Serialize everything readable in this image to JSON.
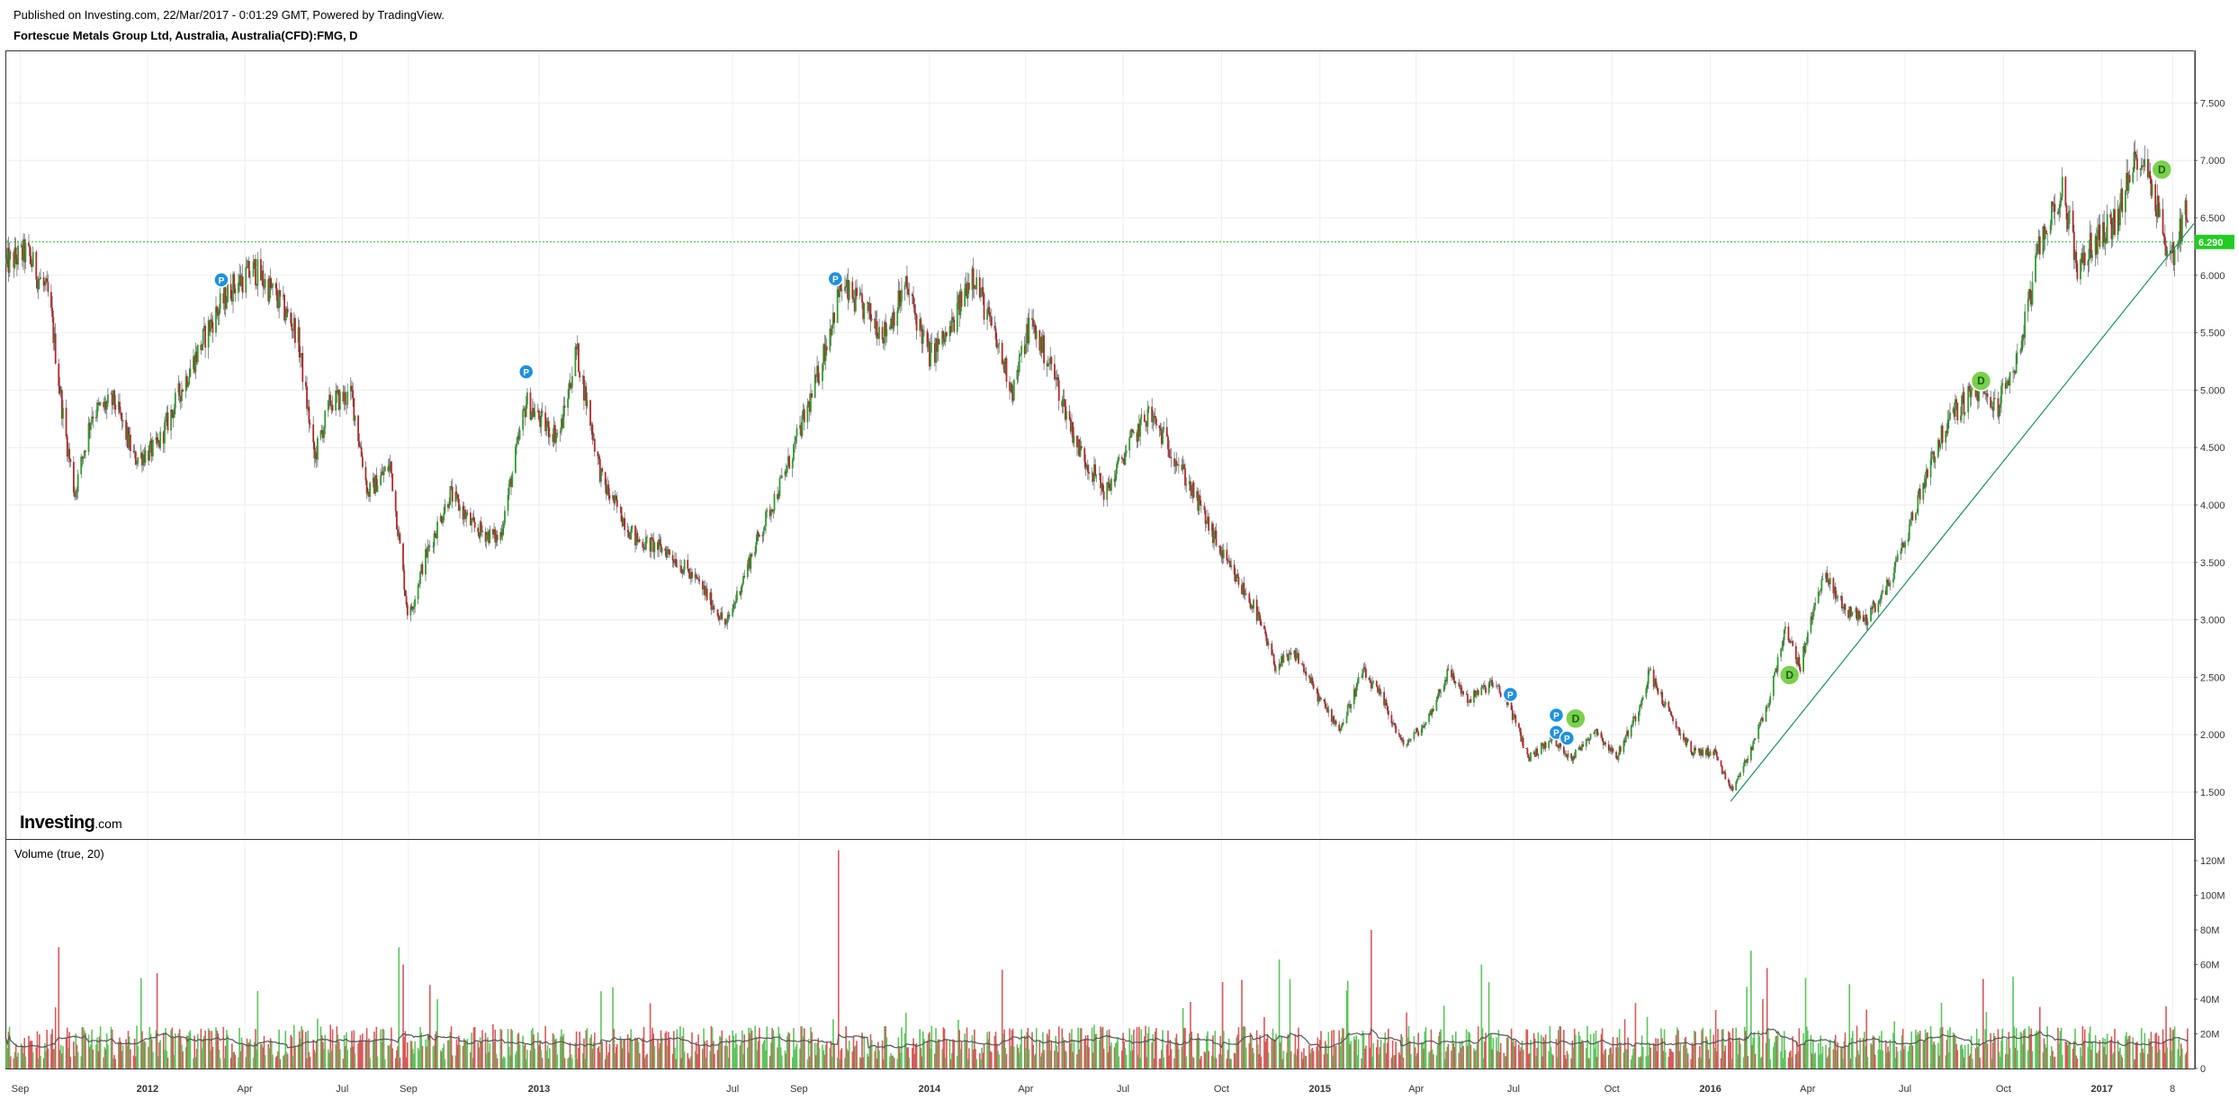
{
  "header": {
    "published": "Published on Investing.com, 22/Mar/2017 - 0:01:29 GMT, Powered by TradingView.",
    "symbol": "Fortescue Metals Group Ltd, Australia, Australia(CFD):FMG, D"
  },
  "logo": {
    "bold": "Investing",
    "suffix": ".com"
  },
  "volume_label": "Volume (true, 20)",
  "colors": {
    "up": "#2e9c2e",
    "down": "#b3282b",
    "vol_up": "#5ec45e",
    "vol_down": "#d65a5a",
    "level": "#22bb22",
    "trend": "#1f8f5f",
    "grid": "#eeeeee",
    "marker_p": "#1e90e0",
    "marker_d": "#7bd04f",
    "ma": "#555555"
  },
  "chart_data": [
    {
      "type": "candlestick",
      "title": "Fortescue Metals Group Ltd, Australia, Australia(CFD):FMG, D",
      "x_ticks": [
        "Sep",
        "2012",
        "Apr",
        "Jul",
        "Sep",
        "2013",
        "Jul",
        "Sep",
        "2014",
        "Apr",
        "Jul",
        "Oct",
        "2015",
        "Apr",
        "Jul",
        "Oct",
        "2016",
        "Apr",
        "Jul",
        "Oct",
        "2017",
        "8"
      ],
      "y_ticks": [
        "1.500",
        "2.000",
        "2.500",
        "3.000",
        "3.500",
        "4.000",
        "4.500",
        "5.000",
        "5.500",
        "6.000",
        "6.500",
        "7.000",
        "7.500"
      ],
      "ylim": [
        1.1,
        7.95
      ],
      "xlim": [
        "2011-08-22",
        "2017-03-28"
      ],
      "price_path": [
        [
          "2011-08-22",
          6.1
        ],
        [
          "2011-09-10",
          6.2
        ],
        [
          "2011-10-01",
          5.8
        ],
        [
          "2011-10-15",
          4.7
        ],
        [
          "2011-10-25",
          4.1
        ],
        [
          "2011-11-10",
          4.8
        ],
        [
          "2011-12-01",
          4.9
        ],
        [
          "2011-12-20",
          4.4
        ],
        [
          "2012-01-10",
          4.5
        ],
        [
          "2012-02-01",
          5.0
        ],
        [
          "2012-03-01",
          5.6
        ],
        [
          "2012-03-20",
          5.9
        ],
        [
          "2012-04-10",
          6.05
        ],
        [
          "2012-05-01",
          5.8
        ],
        [
          "2012-05-20",
          5.5
        ],
        [
          "2012-06-05",
          4.4
        ],
        [
          "2012-06-20",
          4.9
        ],
        [
          "2012-07-10",
          4.95
        ],
        [
          "2012-07-25",
          4.1
        ],
        [
          "2012-08-15",
          4.35
        ],
        [
          "2012-09-01",
          3.0
        ],
        [
          "2012-09-15",
          3.5
        ],
        [
          "2012-10-10",
          4.1
        ],
        [
          "2012-11-01",
          3.8
        ],
        [
          "2012-11-25",
          3.7
        ],
        [
          "2012-12-20",
          4.9
        ],
        [
          "2013-01-05",
          4.7
        ],
        [
          "2013-01-20",
          4.6
        ],
        [
          "2013-02-05",
          5.35
        ],
        [
          "2013-03-01",
          4.2
        ],
        [
          "2013-04-01",
          3.7
        ],
        [
          "2013-05-01",
          3.6
        ],
        [
          "2013-06-01",
          3.3
        ],
        [
          "2013-06-25",
          2.95
        ],
        [
          "2013-07-20",
          3.6
        ],
        [
          "2013-08-20",
          4.3
        ],
        [
          "2013-09-15",
          5.0
        ],
        [
          "2013-10-10",
          5.9
        ],
        [
          "2013-11-01",
          5.7
        ],
        [
          "2013-11-20",
          5.5
        ],
        [
          "2013-12-10",
          5.9
        ],
        [
          "2014-01-01",
          5.3
        ],
        [
          "2014-01-20",
          5.5
        ],
        [
          "2014-02-10",
          6.05
        ],
        [
          "2014-03-05",
          5.4
        ],
        [
          "2014-03-20",
          5.0
        ],
        [
          "2014-04-05",
          5.6
        ],
        [
          "2014-04-25",
          5.2
        ],
        [
          "2014-05-20",
          4.5
        ],
        [
          "2014-06-15",
          4.1
        ],
        [
          "2014-07-05",
          4.5
        ],
        [
          "2014-07-25",
          4.8
        ],
        [
          "2014-08-20",
          4.4
        ],
        [
          "2014-09-15",
          3.9
        ],
        [
          "2014-10-05",
          3.5
        ],
        [
          "2014-11-01",
          3.1
        ],
        [
          "2014-11-20",
          2.6
        ],
        [
          "2014-12-10",
          2.7
        ],
        [
          "2015-01-01",
          2.3
        ],
        [
          "2015-01-20",
          2.05
        ],
        [
          "2015-02-10",
          2.55
        ],
        [
          "2015-03-01",
          2.3
        ],
        [
          "2015-03-20",
          1.9
        ],
        [
          "2015-04-10",
          2.1
        ],
        [
          "2015-05-01",
          2.55
        ],
        [
          "2015-05-20",
          2.3
        ],
        [
          "2015-06-10",
          2.45
        ],
        [
          "2015-06-25",
          2.3
        ],
        [
          "2015-07-15",
          1.8
        ],
        [
          "2015-08-05",
          1.95
        ],
        [
          "2015-08-25",
          1.8
        ],
        [
          "2015-09-15",
          2.05
        ],
        [
          "2015-10-05",
          1.8
        ],
        [
          "2015-10-25",
          2.2
        ],
        [
          "2015-11-05",
          2.55
        ],
        [
          "2015-11-25",
          2.15
        ],
        [
          "2015-12-15",
          1.85
        ],
        [
          "2016-01-05",
          1.85
        ],
        [
          "2016-01-20",
          1.5
        ],
        [
          "2016-02-05",
          1.8
        ],
        [
          "2016-02-25",
          2.3
        ],
        [
          "2016-03-10",
          2.9
        ],
        [
          "2016-03-25",
          2.6
        ],
        [
          "2016-04-15",
          3.4
        ],
        [
          "2016-05-05",
          3.1
        ],
        [
          "2016-05-25",
          3.0
        ],
        [
          "2016-06-15",
          3.3
        ],
        [
          "2016-07-05",
          3.8
        ],
        [
          "2016-07-25",
          4.4
        ],
        [
          "2016-08-15",
          4.8
        ],
        [
          "2016-09-05",
          5.0
        ],
        [
          "2016-09-25",
          4.85
        ],
        [
          "2016-10-15",
          5.3
        ],
        [
          "2016-11-05",
          6.3
        ],
        [
          "2016-11-25",
          6.75
        ],
        [
          "2016-12-10",
          6.05
        ],
        [
          "2016-12-25",
          6.3
        ],
        [
          "2017-01-15",
          6.5
        ],
        [
          "2017-02-05",
          7.1
        ],
        [
          "2017-02-20",
          6.7
        ],
        [
          "2017-03-05",
          6.1
        ],
        [
          "2017-03-22",
          6.6
        ]
      ],
      "current_price": 6.29,
      "current_price_label": "6.290",
      "level_line": 6.29,
      "trend_line": {
        "from": [
          "2016-01-20",
          1.42
        ],
        "to": [
          "2017-03-28",
          6.45
        ]
      },
      "markers": [
        {
          "type": "P",
          "date": "2012-03-10",
          "value": 5.96
        },
        {
          "type": "P",
          "date": "2012-12-20",
          "value": 5.16
        },
        {
          "type": "P",
          "date": "2013-10-05",
          "value": 5.97
        },
        {
          "type": "P",
          "date": "2015-06-28",
          "value": 2.35
        },
        {
          "type": "P",
          "date": "2015-08-10",
          "value": 2.17
        },
        {
          "type": "P",
          "date": "2015-08-10",
          "value": 2.02
        },
        {
          "type": "P",
          "date": "2015-08-20",
          "value": 1.97
        },
        {
          "type": "D",
          "date": "2015-08-28",
          "value": 2.14
        },
        {
          "type": "D",
          "date": "2016-03-15",
          "value": 2.52
        },
        {
          "type": "D",
          "date": "2016-09-10",
          "value": 5.08
        },
        {
          "type": "D",
          "date": "2017-02-26",
          "value": 6.92
        }
      ]
    },
    {
      "type": "bar",
      "title": "Volume (true, 20)",
      "y_ticks": [
        "0",
        "20M",
        "40M",
        "60M",
        "80M",
        "100M",
        "120M"
      ],
      "ylim": [
        0,
        132
      ],
      "unit": "M",
      "typical_volume": 15,
      "moving_average_length": 20,
      "spikes": [
        {
          "date": "2011-10-12",
          "value": 70
        },
        {
          "date": "2012-01-12",
          "value": 55
        },
        {
          "date": "2012-08-25",
          "value": 70
        },
        {
          "date": "2012-08-29",
          "value": 60
        },
        {
          "date": "2013-10-10",
          "value": 126
        },
        {
          "date": "2014-03-10",
          "value": 57
        },
        {
          "date": "2014-11-25",
          "value": 63
        },
        {
          "date": "2015-02-20",
          "value": 80
        },
        {
          "date": "2015-06-01",
          "value": 60
        },
        {
          "date": "2016-02-10",
          "value": 68
        },
        {
          "date": "2016-02-25",
          "value": 58
        }
      ]
    }
  ]
}
